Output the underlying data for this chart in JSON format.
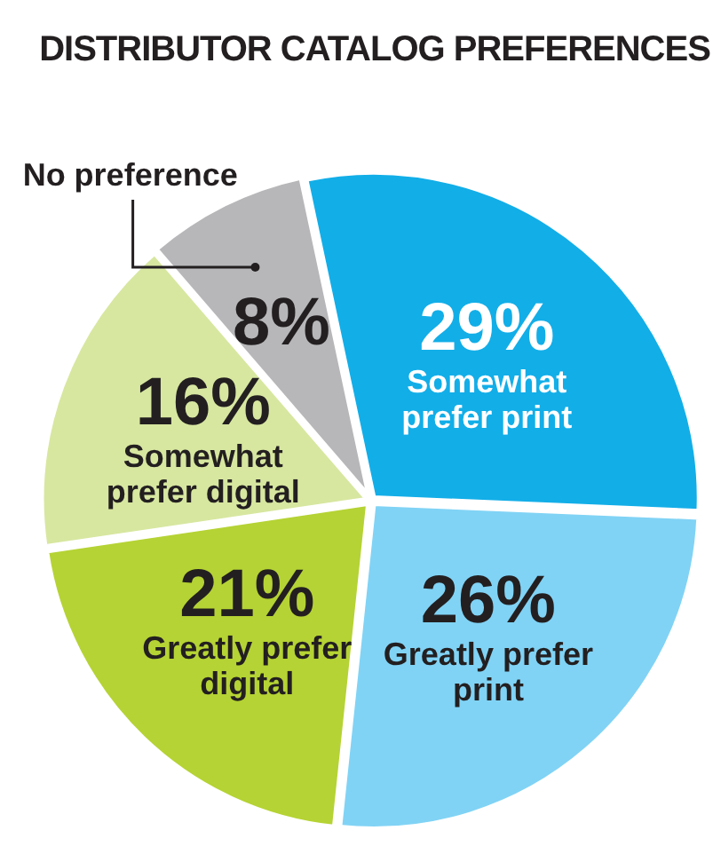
{
  "chart_data": {
    "type": "pie",
    "title": "DISTRIBUTOR CATALOG PREFERENCES",
    "categories": [
      "Somewhat prefer print",
      "Greatly prefer print",
      "Greatly prefer digital",
      "Somewhat prefer digital",
      "No preference"
    ],
    "values": [
      29,
      26,
      21,
      16,
      8
    ],
    "value_labels": [
      "29%",
      "26%",
      "21%",
      "16%",
      "8%"
    ],
    "colors": [
      "#12aee8",
      "#80d3f5",
      "#b5d334",
      "#d7e7a0",
      "#b7b7b9"
    ],
    "legend": false
  }
}
